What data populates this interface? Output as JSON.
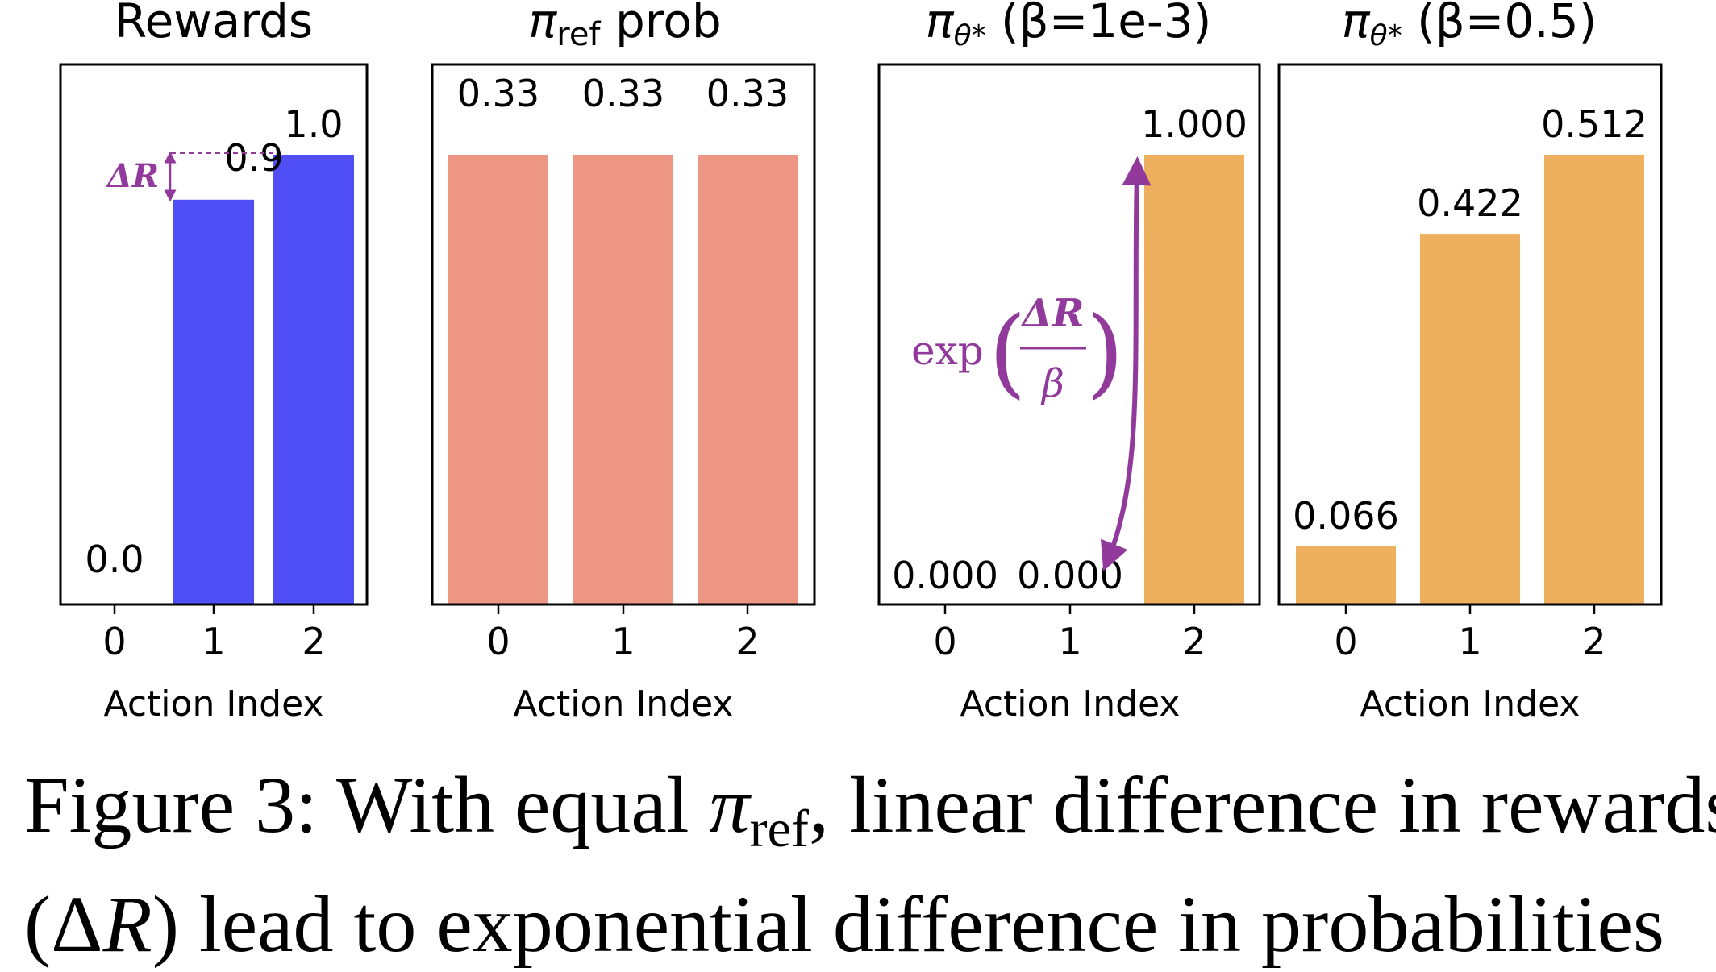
{
  "colors": {
    "rewards": "#4f4ff5",
    "ref": "#ec9683",
    "policy": "#eeaf5e",
    "annotation": "#913a9b"
  },
  "chart_data": [
    {
      "type": "bar",
      "title": "Rewards",
      "categories": [
        "0",
        "1",
        "2"
      ],
      "values": [
        0.0,
        0.9,
        1.0
      ],
      "value_labels": [
        "0.0",
        "0.9",
        "1.0"
      ],
      "xlabel": "Action Index",
      "ylim": [
        0,
        1.0
      ],
      "annotation": "ΔR"
    },
    {
      "type": "bar",
      "title_symbol": "π",
      "title_sub": "ref",
      "title_rest": " prob",
      "categories": [
        "0",
        "1",
        "2"
      ],
      "values": [
        0.33,
        0.33,
        0.33
      ],
      "value_labels": [
        "0.33",
        "0.33",
        "0.33"
      ],
      "xlabel": "Action Index",
      "ylim": [
        0,
        0.33
      ]
    },
    {
      "type": "bar",
      "title_symbol": "π",
      "title_sub": "θ*",
      "title_rest": " (β=1e-3)",
      "categories": [
        "0",
        "1",
        "2"
      ],
      "values": [
        0.0,
        0.0,
        1.0
      ],
      "value_labels": [
        "0.000",
        "0.000",
        "1.000"
      ],
      "xlabel": "Action Index",
      "ylim": [
        0,
        1.0
      ],
      "annotation_prefix": "exp",
      "annotation_numerator": "ΔR",
      "annotation_denominator": "β"
    },
    {
      "type": "bar",
      "title_symbol": "π",
      "title_sub": "θ*",
      "title_rest": " (β=0.5)",
      "categories": [
        "0",
        "1",
        "2"
      ],
      "values": [
        0.066,
        0.422,
        0.512
      ],
      "value_labels": [
        "0.066",
        "0.422",
        "0.512"
      ],
      "xlabel": "Action Index",
      "ylim": [
        0,
        0.512
      ]
    }
  ],
  "caption": {
    "line1_a": "Figure 3: With equal ",
    "line1_pi": "π",
    "line1_sub": "ref",
    "line1_b": ", linear difference in rewards",
    "line2_a": "(Δ",
    "line2_r": "R",
    "line2_b": ") lead to exponential difference in probabilities"
  }
}
